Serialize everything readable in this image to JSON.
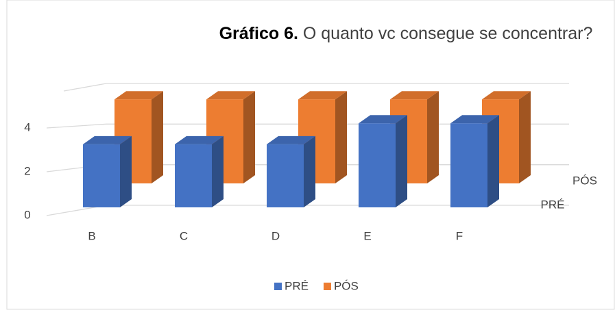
{
  "chart_data": {
    "type": "bar3d",
    "title": "Gráfico 6.",
    "subtitle": "O quanto vc consegue se concentrar?",
    "categories": [
      "B",
      "C",
      "D",
      "E",
      "F"
    ],
    "series": [
      {
        "name": "PRÉ",
        "color": "#4472c4",
        "values": [
          3,
          3,
          3,
          4,
          4
        ]
      },
      {
        "name": "PÓS",
        "color": "#ed7d31",
        "values": [
          4,
          4,
          4,
          4,
          4
        ]
      }
    ],
    "ylim": [
      0,
      6
    ],
    "yticks": [
      0,
      2,
      4
    ],
    "grid": true,
    "legend": "bottom"
  }
}
